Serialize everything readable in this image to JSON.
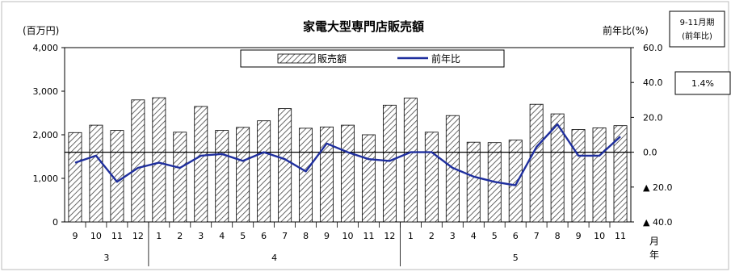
{
  "chart_data": {
    "type": "bar",
    "title": "家電大型専門店販売額",
    "left_axis_unit": "(百万円)",
    "right_axis_unit": "前年比(%)",
    "legend": {
      "position": "top-center"
    },
    "grid": false,
    "month_unit": [
      "月",
      "年"
    ],
    "y_left": {
      "min": 0,
      "max": 4000,
      "ticks": [
        "0",
        "1,000",
        "2,000",
        "3,000",
        "4,000"
      ],
      "tick_values": [
        0,
        1000,
        2000,
        3000,
        4000
      ]
    },
    "y_right": {
      "min": -40,
      "max": 60,
      "ticks": [
        "▲ 40.0",
        "▲ 20.0",
        "0.0",
        "20.0",
        "40.0",
        "60.0"
      ],
      "tick_values": [
        -40,
        -20,
        0,
        20,
        40,
        60
      ]
    },
    "categories": [
      "9",
      "10",
      "11",
      "12",
      "1",
      "2",
      "3",
      "4",
      "5",
      "6",
      "7",
      "8",
      "9",
      "10",
      "11",
      "12",
      "1",
      "2",
      "3",
      "4",
      "5",
      "6",
      "7",
      "8",
      "9",
      "10",
      "11"
    ],
    "years": [
      {
        "label": "3",
        "count": 4
      },
      {
        "label": "4",
        "count": 12
      },
      {
        "label": "5",
        "count": 11
      }
    ],
    "series": [
      {
        "name": "販売額",
        "kind": "bar",
        "axis": "left",
        "values": [
          2050,
          2220,
          2100,
          2800,
          2850,
          2060,
          2650,
          2100,
          2170,
          2320,
          2600,
          2150,
          2180,
          2220,
          2000,
          2680,
          2840,
          2060,
          2440,
          1830,
          1820,
          1880,
          2700,
          2480,
          2120,
          2160,
          2210
        ]
      },
      {
        "name": "前年比",
        "kind": "line",
        "axis": "right",
        "color": "#1f2f9e",
        "values": [
          -6,
          -2,
          -17,
          -9,
          -6,
          -9,
          -2,
          -1,
          -5,
          0,
          -4,
          -11,
          5,
          0,
          -4,
          -5,
          0,
          0,
          -9,
          -14,
          -17,
          -19,
          3,
          16,
          -2,
          -2,
          9
        ]
      }
    ],
    "annotation": {
      "label": "9-11月期",
      "sublabel": "(前年比)",
      "value": "1.4%"
    }
  }
}
